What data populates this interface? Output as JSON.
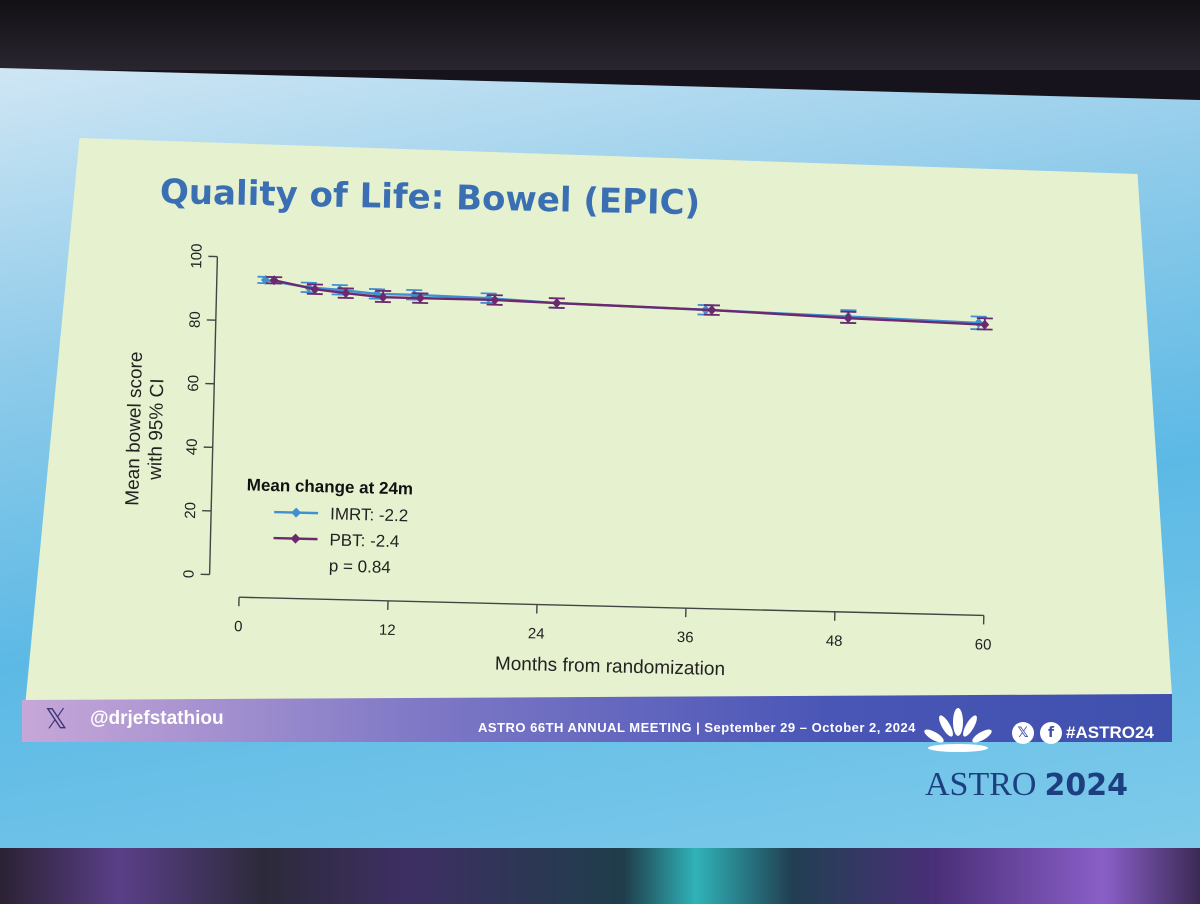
{
  "slide": {
    "title": "Quality of Life: Bowel (EPIC)"
  },
  "chart_data": {
    "type": "line",
    "ylabel": "Mean bowel score\nwith 95% CI",
    "xlabel": "Months from randomization",
    "xlim": [
      0,
      60
    ],
    "ylim": [
      0,
      100
    ],
    "xticks": [
      0,
      12,
      24,
      36,
      48,
      60
    ],
    "yticks": [
      0,
      20,
      40,
      60,
      80,
      100
    ],
    "legend_title": "Mean change at 24m",
    "legend_placement": "lower-left",
    "series": [
      {
        "name": "IMRT: -2.2",
        "color": "#3f8fd2",
        "points": [
          {
            "x": 1.5,
            "y": 93,
            "lo": 92,
            "hi": 94
          },
          {
            "x": 5,
            "y": 91,
            "lo": 89.5,
            "hi": 92.5
          },
          {
            "x": 7.5,
            "y": 90.5,
            "lo": 89,
            "hi": 92
          },
          {
            "x": 10.5,
            "y": 89.5,
            "lo": 88,
            "hi": 91
          },
          {
            "x": 13.5,
            "y": 89.5,
            "lo": 88,
            "hi": 91
          },
          {
            "x": 19.5,
            "y": 89,
            "lo": 87.5,
            "hi": 90.5
          },
          {
            "x": 25,
            "y": 88,
            "lo": 86.5,
            "hi": 89.5
          },
          {
            "x": 37,
            "y": 87,
            "lo": 85.5,
            "hi": 88.5
          },
          {
            "x": 48.5,
            "y": 86,
            "lo": 84,
            "hi": 88
          },
          {
            "x": 59,
            "y": 85,
            "lo": 83,
            "hi": 87
          }
        ]
      },
      {
        "name": "PBT:   -2.4",
        "color": "#6b2a6e",
        "points": [
          {
            "x": 2.2,
            "y": 93,
            "lo": 92,
            "hi": 94
          },
          {
            "x": 5.5,
            "y": 90.5,
            "lo": 89,
            "hi": 92
          },
          {
            "x": 8,
            "y": 89.5,
            "lo": 88,
            "hi": 91
          },
          {
            "x": 11,
            "y": 88.5,
            "lo": 87,
            "hi": 90.5
          },
          {
            "x": 14,
            "y": 88.5,
            "lo": 87,
            "hi": 90
          },
          {
            "x": 20,
            "y": 88.5,
            "lo": 87,
            "hi": 90
          },
          {
            "x": 25,
            "y": 88,
            "lo": 86.5,
            "hi": 89.5
          },
          {
            "x": 37.5,
            "y": 87,
            "lo": 85.5,
            "hi": 88.5
          },
          {
            "x": 48.5,
            "y": 85.5,
            "lo": 84,
            "hi": 87.5
          },
          {
            "x": 59.5,
            "y": 84.5,
            "lo": 83,
            "hi": 86.5
          }
        ]
      }
    ],
    "annotations": [
      "p = 0.84"
    ]
  },
  "footer": {
    "x_logo": "𝕏",
    "handle": "@drjefstathiou",
    "meeting": "ASTRO 66TH ANNUAL MEETING  |  September 29 – October 2, 2024",
    "x_icon": "𝕏",
    "facebook_icon": "f",
    "hashtag": "#ASTRO24"
  },
  "brand": {
    "name": "ASTRO",
    "year": "2024"
  },
  "colors": {
    "slide_bg": "#e6f2cf",
    "title": "#3a6fb4",
    "footer_dark": "#3f50ad"
  }
}
